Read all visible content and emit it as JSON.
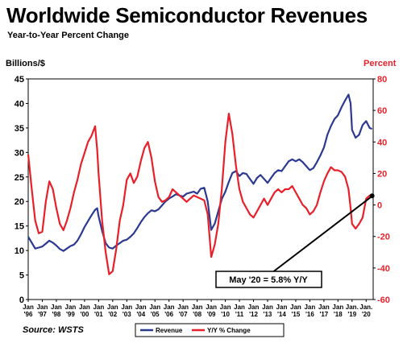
{
  "chart_data": {
    "type": "line",
    "title": "Worldwide Semiconductor Revenues",
    "subtitle": "Year-to-Year Percent Change",
    "ylabel_left": "Billions/$",
    "ylabel_right": "Percent",
    "source": "Source: WSTS",
    "ylim_left": [
      0,
      45
    ],
    "ylim_right": [
      -60,
      80
    ],
    "yticks_left": [
      "0",
      "5",
      "10",
      "15",
      "20",
      "25",
      "30",
      "35",
      "40",
      "45"
    ],
    "yticks_right": [
      "-60",
      "-40",
      "-20",
      "0",
      "20",
      "40",
      "60",
      "80"
    ],
    "xlim": [
      1996.0,
      2020.5
    ],
    "xticks": [
      {
        "top": "Jan",
        "bottom": "'96",
        "x": 1996
      },
      {
        "top": "Jan",
        "bottom": "'97",
        "x": 1997
      },
      {
        "top": "Jan",
        "bottom": "'98",
        "x": 1998
      },
      {
        "top": "Jan",
        "bottom": "'99",
        "x": 1999
      },
      {
        "top": "Jan",
        "bottom": "'00",
        "x": 2000
      },
      {
        "top": "Jan",
        "bottom": "'01",
        "x": 2001
      },
      {
        "top": "Jan",
        "bottom": "'02",
        "x": 2002
      },
      {
        "top": "Jan",
        "bottom": "'03",
        "x": 2003
      },
      {
        "top": "Jan",
        "bottom": "'04",
        "x": 2004
      },
      {
        "top": "Jan",
        "bottom": "'05",
        "x": 2005
      },
      {
        "top": "Jan",
        "bottom": "'06",
        "x": 2006
      },
      {
        "top": "Jan",
        "bottom": "'07",
        "x": 2007
      },
      {
        "top": "Jan",
        "bottom": "'08",
        "x": 2008
      },
      {
        "top": "Jan",
        "bottom": "'09",
        "x": 2009
      },
      {
        "top": "Jan",
        "bottom": "'10",
        "x": 2010
      },
      {
        "top": "Jan",
        "bottom": "'11",
        "x": 2011
      },
      {
        "top": "Jan",
        "bottom": "'12",
        "x": 2012
      },
      {
        "top": "Jan",
        "bottom": "'13",
        "x": 2013
      },
      {
        "top": "Jan",
        "bottom": "'14",
        "x": 2014
      },
      {
        "top": "Jan",
        "bottom": "'15",
        "x": 2015
      },
      {
        "top": "Jan",
        "bottom": "'16",
        "x": 2016
      },
      {
        "top": "Jan",
        "bottom": "'17",
        "x": 2017
      },
      {
        "top": "Jan",
        "bottom": "'18",
        "x": 2018
      },
      {
        "top": "Jan.",
        "bottom": "'19",
        "x": 2019
      },
      {
        "top": "Jan.",
        "bottom": "'20",
        "x": 2020
      }
    ],
    "grid": false,
    "legend_position": "bottom-center",
    "colors": {
      "revenue": "#2b3990",
      "yoy": "#e8202a"
    },
    "series": [
      {
        "name": "Revenue",
        "axis": "left",
        "points": [
          [
            1996.0,
            12.8
          ],
          [
            1996.25,
            11.6
          ],
          [
            1996.5,
            10.4
          ],
          [
            1996.75,
            10.6
          ],
          [
            1997.0,
            10.8
          ],
          [
            1997.25,
            11.4
          ],
          [
            1997.5,
            12.0
          ],
          [
            1997.75,
            11.6
          ],
          [
            1998.0,
            11.0
          ],
          [
            1998.25,
            10.3
          ],
          [
            1998.5,
            9.9
          ],
          [
            1998.75,
            10.4
          ],
          [
            1999.0,
            10.9
          ],
          [
            1999.25,
            11.2
          ],
          [
            1999.5,
            12.0
          ],
          [
            1999.75,
            13.3
          ],
          [
            2000.0,
            14.8
          ],
          [
            2000.25,
            16.0
          ],
          [
            2000.5,
            17.2
          ],
          [
            2000.75,
            18.3
          ],
          [
            2000.9,
            18.6
          ],
          [
            2001.0,
            17.0
          ],
          [
            2001.25,
            14.0
          ],
          [
            2001.5,
            11.5
          ],
          [
            2001.75,
            10.6
          ],
          [
            2002.0,
            10.4
          ],
          [
            2002.25,
            11.0
          ],
          [
            2002.5,
            11.5
          ],
          [
            2002.75,
            12.0
          ],
          [
            2003.0,
            12.2
          ],
          [
            2003.25,
            12.8
          ],
          [
            2003.5,
            13.5
          ],
          [
            2003.75,
            14.6
          ],
          [
            2004.0,
            15.8
          ],
          [
            2004.25,
            16.8
          ],
          [
            2004.5,
            17.6
          ],
          [
            2004.75,
            18.2
          ],
          [
            2005.0,
            18.0
          ],
          [
            2005.25,
            18.4
          ],
          [
            2005.5,
            19.2
          ],
          [
            2005.75,
            20.0
          ],
          [
            2006.0,
            20.6
          ],
          [
            2006.25,
            21.0
          ],
          [
            2006.5,
            21.5
          ],
          [
            2006.75,
            21.2
          ],
          [
            2007.0,
            21.0
          ],
          [
            2007.25,
            21.6
          ],
          [
            2007.5,
            21.8
          ],
          [
            2007.75,
            22.0
          ],
          [
            2008.0,
            21.6
          ],
          [
            2008.25,
            22.6
          ],
          [
            2008.5,
            22.8
          ],
          [
            2008.75,
            20.0
          ],
          [
            2009.0,
            14.2
          ],
          [
            2009.25,
            15.5
          ],
          [
            2009.5,
            18.0
          ],
          [
            2009.75,
            20.5
          ],
          [
            2010.0,
            22.0
          ],
          [
            2010.25,
            24.0
          ],
          [
            2010.5,
            25.8
          ],
          [
            2010.75,
            26.2
          ],
          [
            2011.0,
            25.2
          ],
          [
            2011.25,
            25.8
          ],
          [
            2011.5,
            25.6
          ],
          [
            2011.75,
            24.6
          ],
          [
            2012.0,
            23.6
          ],
          [
            2012.25,
            24.8
          ],
          [
            2012.5,
            25.4
          ],
          [
            2012.75,
            24.6
          ],
          [
            2013.0,
            23.8
          ],
          [
            2013.25,
            24.8
          ],
          [
            2013.5,
            25.8
          ],
          [
            2013.75,
            26.4
          ],
          [
            2014.0,
            26.2
          ],
          [
            2014.25,
            27.2
          ],
          [
            2014.5,
            28.2
          ],
          [
            2014.75,
            28.6
          ],
          [
            2015.0,
            28.2
          ],
          [
            2015.25,
            28.6
          ],
          [
            2015.5,
            28.0
          ],
          [
            2015.75,
            27.2
          ],
          [
            2016.0,
            26.4
          ],
          [
            2016.25,
            26.8
          ],
          [
            2016.5,
            28.0
          ],
          [
            2016.75,
            29.4
          ],
          [
            2017.0,
            31.0
          ],
          [
            2017.25,
            33.6
          ],
          [
            2017.5,
            35.4
          ],
          [
            2017.75,
            36.8
          ],
          [
            2018.0,
            37.6
          ],
          [
            2018.25,
            39.2
          ],
          [
            2018.5,
            40.6
          ],
          [
            2018.75,
            41.8
          ],
          [
            2018.9,
            40.0
          ],
          [
            2019.0,
            34.6
          ],
          [
            2019.25,
            33.0
          ],
          [
            2019.5,
            33.6
          ],
          [
            2019.75,
            35.6
          ],
          [
            2020.0,
            36.4
          ],
          [
            2020.25,
            35.0
          ],
          [
            2020.42,
            34.8
          ]
        ]
      },
      {
        "name": "Y/Y % Change",
        "axis": "right",
        "points": [
          [
            1996.0,
            32
          ],
          [
            1996.25,
            10
          ],
          [
            1996.5,
            -10
          ],
          [
            1996.75,
            -18
          ],
          [
            1997.0,
            -17
          ],
          [
            1997.25,
            2
          ],
          [
            1997.5,
            15
          ],
          [
            1997.75,
            10
          ],
          [
            1998.0,
            -2
          ],
          [
            1998.25,
            -12
          ],
          [
            1998.5,
            -16
          ],
          [
            1998.75,
            -10
          ],
          [
            1999.0,
            -2
          ],
          [
            1999.25,
            8
          ],
          [
            1999.5,
            16
          ],
          [
            1999.75,
            26
          ],
          [
            2000.0,
            33
          ],
          [
            2000.25,
            40
          ],
          [
            2000.5,
            44
          ],
          [
            2000.75,
            50
          ],
          [
            2000.9,
            35
          ],
          [
            2001.0,
            20
          ],
          [
            2001.25,
            -10
          ],
          [
            2001.5,
            -30
          ],
          [
            2001.75,
            -44
          ],
          [
            2002.0,
            -42
          ],
          [
            2002.25,
            -28
          ],
          [
            2002.5,
            -10
          ],
          [
            2002.75,
            0
          ],
          [
            2003.0,
            16
          ],
          [
            2003.25,
            20
          ],
          [
            2003.5,
            14
          ],
          [
            2003.75,
            18
          ],
          [
            2004.0,
            28
          ],
          [
            2004.25,
            36
          ],
          [
            2004.5,
            40
          ],
          [
            2004.75,
            30
          ],
          [
            2005.0,
            15
          ],
          [
            2005.25,
            5
          ],
          [
            2005.5,
            2
          ],
          [
            2005.75,
            3
          ],
          [
            2006.0,
            5
          ],
          [
            2006.25,
            10
          ],
          [
            2006.5,
            8
          ],
          [
            2006.75,
            6
          ],
          [
            2007.0,
            4
          ],
          [
            2007.25,
            2
          ],
          [
            2007.5,
            4
          ],
          [
            2007.75,
            6
          ],
          [
            2008.0,
            5
          ],
          [
            2008.25,
            4
          ],
          [
            2008.5,
            3
          ],
          [
            2008.75,
            -6
          ],
          [
            2009.0,
            -33
          ],
          [
            2009.25,
            -25
          ],
          [
            2009.5,
            -12
          ],
          [
            2009.75,
            10
          ],
          [
            2010.0,
            40
          ],
          [
            2010.25,
            58
          ],
          [
            2010.5,
            45
          ],
          [
            2010.75,
            25
          ],
          [
            2011.0,
            10
          ],
          [
            2011.25,
            2
          ],
          [
            2011.5,
            -2
          ],
          [
            2011.75,
            -6
          ],
          [
            2012.0,
            -8
          ],
          [
            2012.25,
            -4
          ],
          [
            2012.5,
            0
          ],
          [
            2012.75,
            4
          ],
          [
            2013.0,
            0
          ],
          [
            2013.25,
            4
          ],
          [
            2013.5,
            8
          ],
          [
            2013.75,
            10
          ],
          [
            2014.0,
            8
          ],
          [
            2014.25,
            10
          ],
          [
            2014.5,
            10
          ],
          [
            2014.75,
            12
          ],
          [
            2015.0,
            8
          ],
          [
            2015.25,
            4
          ],
          [
            2015.5,
            0
          ],
          [
            2015.75,
            -2
          ],
          [
            2016.0,
            -6
          ],
          [
            2016.25,
            -4
          ],
          [
            2016.5,
            0
          ],
          [
            2016.75,
            8
          ],
          [
            2017.0,
            15
          ],
          [
            2017.25,
            20
          ],
          [
            2017.5,
            24
          ],
          [
            2017.75,
            22
          ],
          [
            2018.0,
            22
          ],
          [
            2018.25,
            21
          ],
          [
            2018.5,
            18
          ],
          [
            2018.75,
            10
          ],
          [
            2018.9,
            -2
          ],
          [
            2019.0,
            -12
          ],
          [
            2019.25,
            -15
          ],
          [
            2019.5,
            -12
          ],
          [
            2019.75,
            -8
          ],
          [
            2020.0,
            4
          ],
          [
            2020.25,
            6
          ],
          [
            2020.42,
            5.8
          ]
        ]
      }
    ],
    "annotation": {
      "text": "May '20 = 5.8% Y/Y",
      "x": 2020.42,
      "y_right": 5.8
    }
  }
}
